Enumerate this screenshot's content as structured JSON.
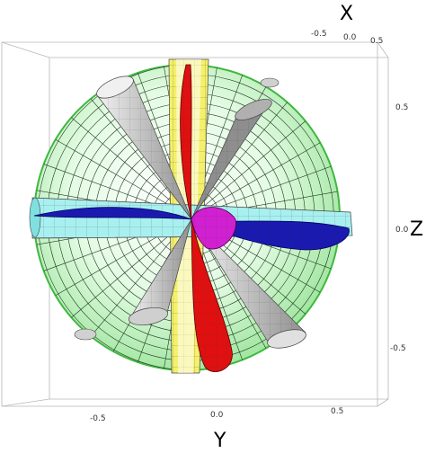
{
  "axes": {
    "x_title": "X",
    "y_title": "Y",
    "z_title": "Z",
    "x_ticks": [
      "-0.5",
      "0.0",
      "0.5"
    ],
    "y_ticks": [
      "-0.5",
      "0.0",
      "0.5"
    ],
    "z_ticks": [
      "0.5",
      "0.0",
      "-0.5"
    ]
  },
  "colors": {
    "sphere": "#c8f5c8",
    "sphere_edge": "#3fb83f",
    "cones": "#d9d9d9",
    "yellow_band": "#f4f06a",
    "cyan_band": "#a8f0f0",
    "red_sheet": "#e01010",
    "blue_sheet": "#1a1ab0",
    "magenta_lobe": "#d020d0"
  }
}
